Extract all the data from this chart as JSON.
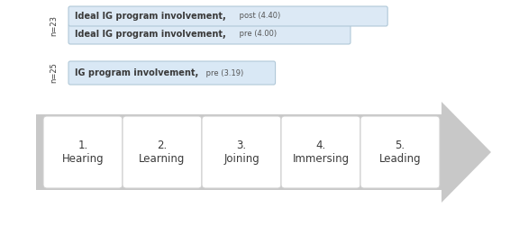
{
  "stages": [
    "1.\nHearing",
    "2.\nLearning",
    "3.\nJoining",
    "4.\nImmersing",
    "5.\nLeading"
  ],
  "arrow_color": "#c8c8c8",
  "box_bg_color": "#ffffff",
  "box_edge_color": "#d0d0d0",
  "bar1_label_bold": "IG program involvement,",
  "bar1_label_small": " pre (3.19)",
  "bar1_value": 3.19,
  "bar1_color": "#d9e8f5",
  "bar1_border": "#b0c8d8",
  "bar1_n": "n=25",
  "bar2_label_bold": "Ideal IG program involvement,",
  "bar2_label_small": " pre (4.00)",
  "bar2_value": 4.0,
  "bar2_color": "#dce9f5",
  "bar2_border": "#b0c8d8",
  "bar3_label_bold": "Ideal IG program involvement,",
  "bar3_label_small": " post (4.40)",
  "bar3_value": 4.4,
  "bar3_color": "#dce9f5",
  "bar3_border": "#b0c8d8",
  "bar2_n": "n=23",
  "max_value": 5.0,
  "background_color": "#ffffff",
  "text_color": "#3a3a3a",
  "small_text_color": "#555555"
}
